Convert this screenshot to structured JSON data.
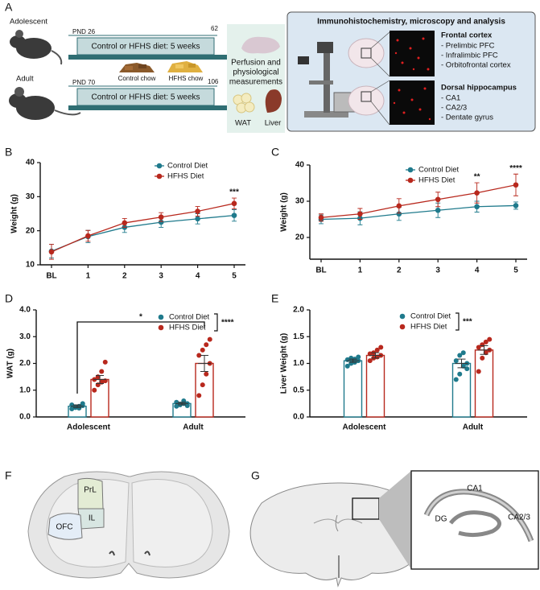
{
  "panel_labels": [
    "A",
    "B",
    "C",
    "D",
    "E",
    "F",
    "G"
  ],
  "schematic": {
    "groups": [
      {
        "name": "Adolescent",
        "start": "PND 26",
        "end": "62",
        "diet": "Control or HFHS diet: 5 weeks"
      },
      {
        "name": "Adult",
        "start": "PND 70",
        "end": "106",
        "diet": "Control or HFHS diet: 5 weeks"
      }
    ],
    "chows": [
      "Control chow",
      "HFHS chow"
    ],
    "measurements": [
      "Perfusion and",
      "physiological",
      "measurements"
    ],
    "tissues": [
      "WAT",
      "Liver"
    ],
    "analysis": {
      "title": "Immunohistochemistry, microscopy and analysis",
      "regions": [
        {
          "name": "Frontal cortex",
          "items": [
            "- Prelimbic PFC",
            "- Infralimbic PFC",
            "- Orbitofrontal cortex"
          ]
        },
        {
          "name": "Dorsal hippocampus",
          "items": [
            "- CA1",
            "- CA2/3",
            "- Dentate gyrus"
          ]
        }
      ]
    }
  },
  "chart_data": [
    {
      "type": "line",
      "ylabel": "Weight (g)",
      "categories": [
        "BL",
        "1",
        "2",
        "3",
        "4",
        "5"
      ],
      "ylim": [
        10,
        40
      ],
      "yticks": [
        10,
        20,
        30,
        40
      ],
      "series": [
        {
          "name": "Control Diet",
          "color": "#1f7a8c",
          "values": [
            14,
            18.3,
            21,
            22.5,
            23.5,
            24.5
          ],
          "errors": [
            2,
            1.8,
            1.5,
            1.5,
            1.5,
            1.7
          ]
        },
        {
          "name": "HFHS Diet",
          "color": "#b8281d",
          "values": [
            13.8,
            18.5,
            22.3,
            24,
            25.7,
            28
          ],
          "errors": [
            2.2,
            1.6,
            1.3,
            1.3,
            1.4,
            1.6
          ]
        }
      ],
      "annotations": [
        "***"
      ]
    },
    {
      "type": "line",
      "ylabel": "Weight (g)",
      "categories": [
        "BL",
        "1",
        "2",
        "3",
        "4",
        "5"
      ],
      "ylim": [
        14,
        40
      ],
      "yticks": [
        20,
        30,
        40
      ],
      "series": [
        {
          "name": "Control Diet",
          "color": "#1f7a8c",
          "values": [
            25,
            25.3,
            26.5,
            27.5,
            28.5,
            28.8
          ],
          "errors": [
            1.2,
            1.8,
            1.8,
            2,
            1.5,
            1
          ]
        },
        {
          "name": "HFHS Diet",
          "color": "#b8281d",
          "values": [
            25.5,
            26.5,
            28.7,
            30.5,
            32.3,
            34.5
          ],
          "errors": [
            1,
            1.5,
            2,
            2,
            2.8,
            3
          ]
        }
      ],
      "annotations": [
        "**",
        "****"
      ]
    },
    {
      "type": "bar",
      "ylabel": "WAT (g)",
      "categories": [
        "Adolescent",
        "Adult"
      ],
      "ylim": [
        0,
        4
      ],
      "yticks": [
        {
          "value": 0,
          "label": "0.0"
        },
        {
          "value": 1,
          "label": "1.0"
        },
        {
          "value": 2,
          "label": "2.0"
        },
        {
          "value": 3,
          "label": "3.0"
        },
        {
          "value": 4,
          "label": "4.0"
        }
      ],
      "series": [
        {
          "name": "Control Diet",
          "color": "#1f7a8c",
          "values": [
            0.4,
            0.5
          ],
          "errors": [
            0.05,
            0.05
          ],
          "points": [
            [
              0.3,
              0.35,
              0.4,
              0.42,
              0.45,
              0.38,
              0.33,
              0.5
            ],
            [
              0.4,
              0.45,
              0.5,
              0.5,
              0.55,
              0.48,
              0.6,
              0.42
            ]
          ]
        },
        {
          "name": "HFHS Diet",
          "color": "#b8281d",
          "values": [
            1.4,
            2.0
          ],
          "errors": [
            0.15,
            0.3
          ],
          "points": [
            [
              1.0,
              1.2,
              1.3,
              1.35,
              1.4,
              1.5,
              1.7,
              2.05
            ],
            [
              0.8,
              1.2,
              1.6,
              2.0,
              2.3,
              2.5,
              2.7,
              2.9
            ]
          ]
        }
      ],
      "annotations": [
        "*",
        "****"
      ]
    },
    {
      "type": "bar",
      "ylabel": "Liver Weight (g)",
      "categories": [
        "Adolescent",
        "Adult"
      ],
      "ylim": [
        0,
        2
      ],
      "yticks": [
        {
          "value": 0,
          "label": "0.0"
        },
        {
          "value": 0.5,
          "label": "0.5"
        },
        {
          "value": 1,
          "label": "1.0"
        },
        {
          "value": 1.5,
          "label": "1.5"
        },
        {
          "value": 2,
          "label": "2.0"
        }
      ],
      "series": [
        {
          "name": "Control Diet",
          "color": "#1f7a8c",
          "values": [
            1.05,
            1.0
          ],
          "errors": [
            0.03,
            0.08
          ],
          "points": [
            [
              0.95,
              1.0,
              1.02,
              1.05,
              1.07,
              1.1,
              1.08,
              1.12
            ],
            [
              0.7,
              0.8,
              0.95,
              1.0,
              1.05,
              1.15,
              1.2,
              0.9
            ]
          ]
        },
        {
          "name": "HFHS Diet",
          "color": "#b8281d",
          "values": [
            1.15,
            1.25
          ],
          "errors": [
            0.05,
            0.08
          ],
          "points": [
            [
              1.05,
              1.1,
              1.12,
              1.15,
              1.18,
              1.2,
              1.25,
              1.3
            ],
            [
              0.85,
              1.1,
              1.2,
              1.25,
              1.3,
              1.35,
              1.4,
              1.45
            ]
          ]
        }
      ],
      "annotations": [
        "***"
      ]
    }
  ],
  "brain_sections": {
    "frontal": [
      "PrL",
      "IL",
      "OFC"
    ],
    "hippocampus": [
      "CA1",
      "DG",
      "CA2/3"
    ]
  }
}
